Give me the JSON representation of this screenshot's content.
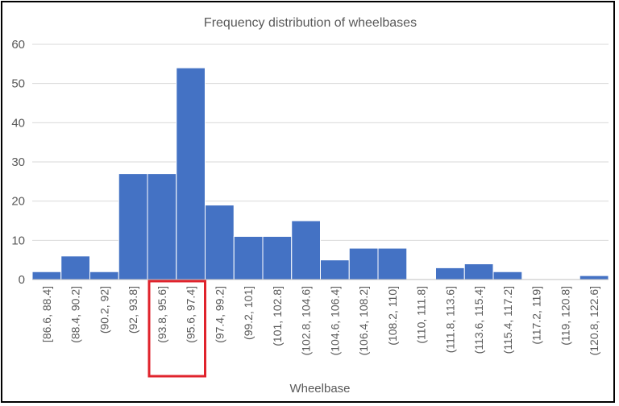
{
  "colors": {
    "bar": "#4472C4",
    "highlight": "#E0232C"
  },
  "chart_data": {
    "type": "bar",
    "title": "Frequency distribution of wheelbases",
    "xlabel": "Wheelbase",
    "ylabel": "",
    "ylim": [
      0,
      60
    ],
    "yticks": [
      0,
      10,
      20,
      30,
      40,
      50,
      60
    ],
    "grid": true,
    "categories": [
      "[86.6, 88.4]",
      "(88.4, 90.2]",
      "(90.2, 92]",
      "(92, 93.8]",
      "(93.8, 95.6]",
      "(95.6, 97.4]",
      "(97.4, 99.2]",
      "(99.2, 101]",
      "(101, 102.8]",
      "(102.8, 104.6]",
      "(104.6, 106.4]",
      "(106.4, 108.2]",
      "(108.2, 110]",
      "(110, 111.8]",
      "(111.8, 113.6]",
      "(113.6, 115.4]",
      "(115.4, 117.2]",
      "(117.2, 119]",
      "(119, 120.8]",
      "(120.8, 122.6]"
    ],
    "values": [
      2,
      6,
      2,
      27,
      27,
      54,
      19,
      11,
      11,
      15,
      5,
      8,
      8,
      0,
      3,
      4,
      2,
      0,
      0,
      1
    ],
    "highlighted_categories": [
      "(93.8, 95.6]",
      "(95.6, 97.4]"
    ]
  }
}
